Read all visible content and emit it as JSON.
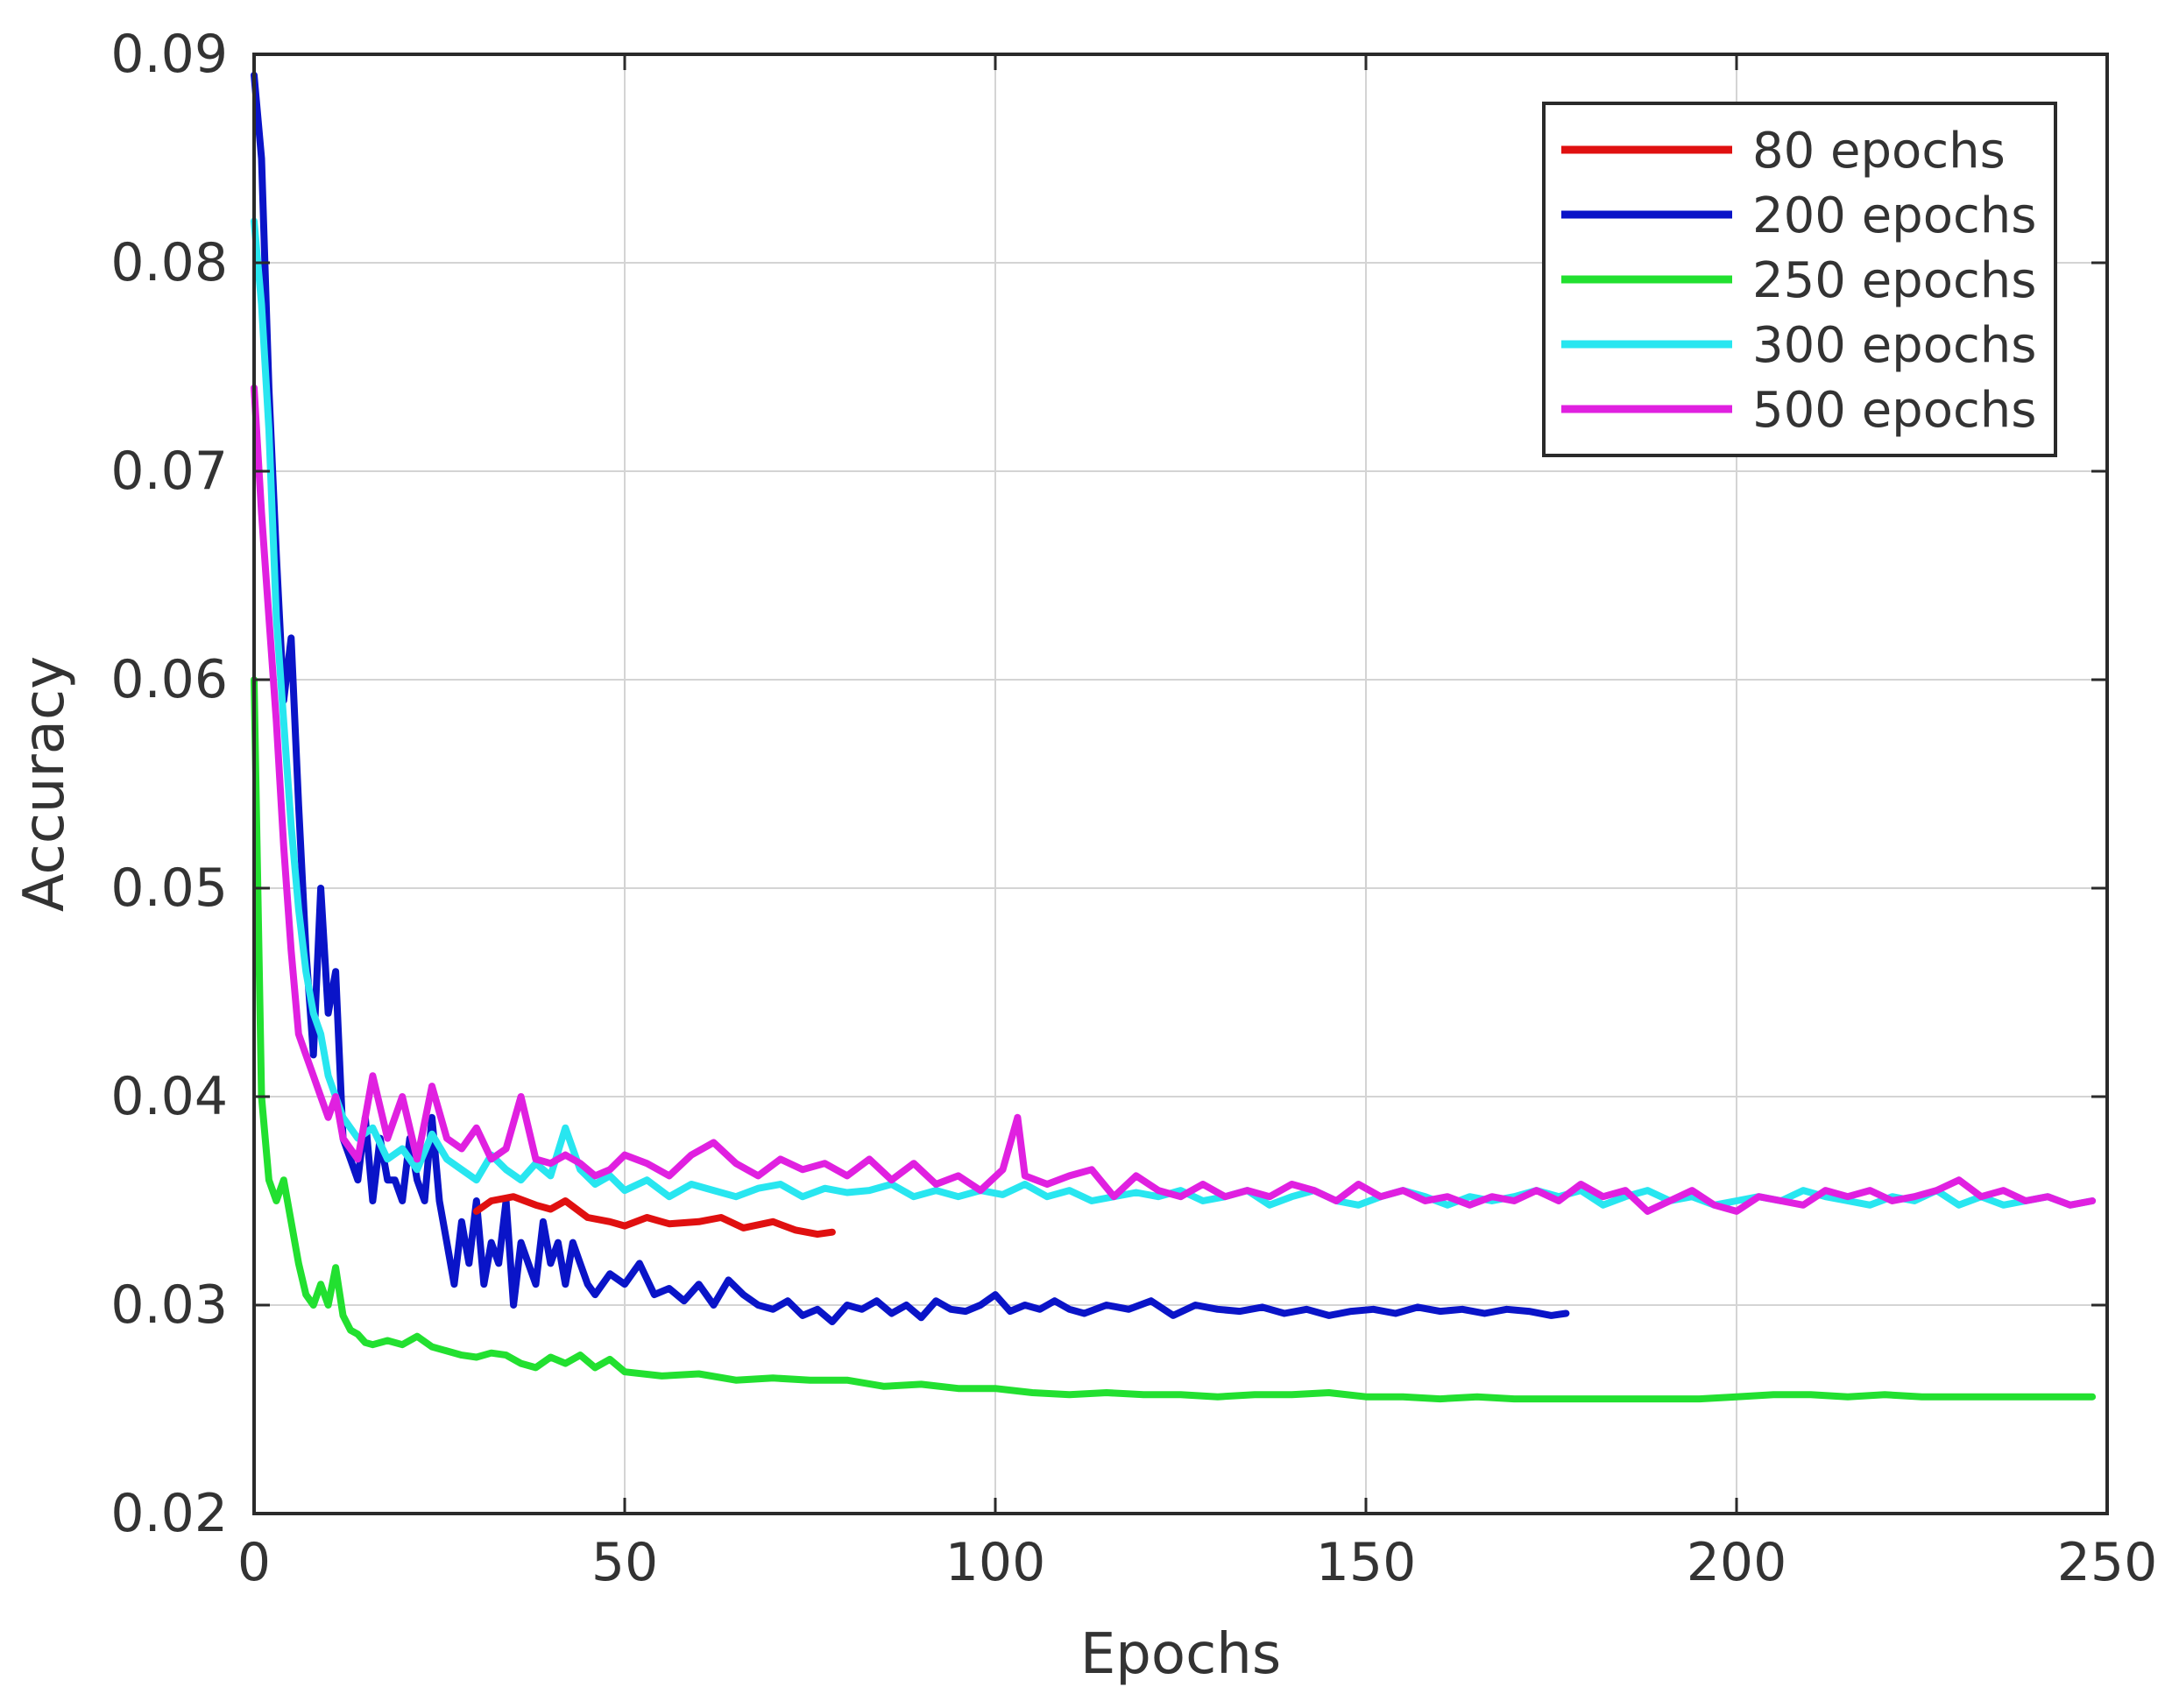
{
  "chart_data": {
    "type": "line",
    "title": "",
    "xlabel": "Epochs",
    "ylabel": "Accuracy",
    "xlim": [
      0,
      250
    ],
    "ylim": [
      0.02,
      0.09
    ],
    "xticks": [
      0,
      50,
      100,
      150,
      200,
      250
    ],
    "yticks": [
      0.02,
      0.03,
      0.04,
      0.05,
      0.06,
      0.07,
      0.08,
      0.09
    ],
    "xtick_labels": [
      "0",
      "50",
      "100",
      "150",
      "200",
      "250"
    ],
    "ytick_labels": [
      "0.02",
      "0.03",
      "0.04",
      "0.05",
      "0.06",
      "0.07",
      "0.08",
      "0.09"
    ],
    "grid": true,
    "legend_position": "top-right",
    "series": [
      {
        "name": "80 epochs",
        "color": "#e01010",
        "x": [
          30,
          32,
          35,
          38,
          40,
          42,
          45,
          48,
          50,
          53,
          56,
          60,
          63,
          66,
          70,
          73,
          76,
          78
        ],
        "y": [
          0.0345,
          0.035,
          0.0352,
          0.0348,
          0.0346,
          0.035,
          0.0342,
          0.034,
          0.0338,
          0.0342,
          0.0339,
          0.034,
          0.0342,
          0.0337,
          0.034,
          0.0336,
          0.0334,
          0.0335
        ]
      },
      {
        "name": "200 epochs",
        "color": "#0a14c8",
        "x": [
          0,
          1,
          2,
          3,
          4,
          5,
          6,
          7,
          8,
          9,
          10,
          11,
          12,
          13,
          14,
          15,
          16,
          17,
          18,
          19,
          20,
          21,
          22,
          23,
          24,
          25,
          26,
          27,
          28,
          29,
          30,
          31,
          32,
          33,
          34,
          35,
          36,
          37,
          38,
          39,
          40,
          41,
          42,
          43,
          44,
          45,
          46,
          48,
          50,
          52,
          54,
          56,
          58,
          60,
          62,
          64,
          66,
          68,
          70,
          72,
          74,
          76,
          78,
          80,
          82,
          84,
          86,
          88,
          90,
          92,
          94,
          96,
          98,
          100,
          102,
          104,
          106,
          108,
          110,
          112,
          115,
          118,
          121,
          124,
          127,
          130,
          133,
          136,
          139,
          142,
          145,
          148,
          151,
          154,
          157,
          160,
          163,
          166,
          169,
          172,
          175,
          177
        ],
        "y": [
          0.089,
          0.085,
          0.074,
          0.066,
          0.059,
          0.062,
          0.054,
          0.047,
          0.042,
          0.05,
          0.044,
          0.046,
          0.038,
          0.037,
          0.036,
          0.039,
          0.035,
          0.038,
          0.036,
          0.036,
          0.035,
          0.038,
          0.036,
          0.035,
          0.039,
          0.035,
          0.033,
          0.031,
          0.034,
          0.032,
          0.035,
          0.031,
          0.033,
          0.032,
          0.035,
          0.03,
          0.033,
          0.032,
          0.031,
          0.034,
          0.032,
          0.033,
          0.031,
          0.033,
          0.032,
          0.031,
          0.0305,
          0.0315,
          0.031,
          0.032,
          0.0305,
          0.0308,
          0.0302,
          0.031,
          0.03,
          0.0312,
          0.0305,
          0.03,
          0.0298,
          0.0302,
          0.0295,
          0.0298,
          0.0292,
          0.03,
          0.0298,
          0.0302,
          0.0296,
          0.03,
          0.0294,
          0.0302,
          0.0298,
          0.0297,
          0.03,
          0.0305,
          0.0297,
          0.03,
          0.0298,
          0.0302,
          0.0298,
          0.0296,
          0.03,
          0.0298,
          0.0302,
          0.0295,
          0.03,
          0.0298,
          0.0297,
          0.0299,
          0.0296,
          0.0298,
          0.0295,
          0.0297,
          0.0298,
          0.0296,
          0.0299,
          0.0297,
          0.0298,
          0.0296,
          0.0298,
          0.0297,
          0.0295,
          0.0296
        ]
      },
      {
        "name": "250 epochs",
        "color": "#22e030",
        "x": [
          0,
          1,
          2,
          3,
          4,
          5,
          6,
          7,
          8,
          9,
          10,
          11,
          12,
          13,
          14,
          15,
          16,
          18,
          20,
          22,
          24,
          26,
          28,
          30,
          32,
          34,
          36,
          38,
          40,
          42,
          44,
          46,
          48,
          50,
          55,
          60,
          65,
          70,
          75,
          80,
          85,
          90,
          95,
          100,
          105,
          110,
          115,
          120,
          125,
          130,
          135,
          140,
          145,
          150,
          155,
          160,
          165,
          170,
          175,
          180,
          185,
          190,
          195,
          200,
          205,
          210,
          215,
          220,
          225,
          230,
          235,
          240,
          245,
          248
        ],
        "y": [
          0.06,
          0.04,
          0.036,
          0.035,
          0.036,
          0.034,
          0.032,
          0.0305,
          0.03,
          0.031,
          0.03,
          0.0318,
          0.0295,
          0.0288,
          0.0286,
          0.0282,
          0.0281,
          0.0283,
          0.0281,
          0.0285,
          0.028,
          0.0278,
          0.0276,
          0.0275,
          0.0277,
          0.0276,
          0.0272,
          0.027,
          0.0275,
          0.0272,
          0.0276,
          0.027,
          0.0274,
          0.0268,
          0.0266,
          0.0267,
          0.0264,
          0.0265,
          0.0264,
          0.0264,
          0.0261,
          0.0262,
          0.026,
          0.026,
          0.0258,
          0.0257,
          0.0258,
          0.0257,
          0.0257,
          0.0256,
          0.0257,
          0.0257,
          0.0258,
          0.0256,
          0.0256,
          0.0255,
          0.0256,
          0.0255,
          0.0255,
          0.0255,
          0.0255,
          0.0255,
          0.0255,
          0.0256,
          0.0257,
          0.0257,
          0.0256,
          0.0257,
          0.0256,
          0.0256,
          0.0256,
          0.0256,
          0.0256,
          0.0256
        ]
      },
      {
        "name": "300 epochs",
        "color": "#28e6f0",
        "x": [
          0,
          1,
          2,
          3,
          4,
          5,
          6,
          7,
          8,
          9,
          10,
          11,
          12,
          14,
          16,
          18,
          20,
          22,
          24,
          26,
          28,
          30,
          32,
          34,
          36,
          38,
          40,
          42,
          44,
          46,
          48,
          50,
          53,
          56,
          59,
          62,
          65,
          68,
          71,
          74,
          77,
          80,
          83,
          86,
          89,
          92,
          95,
          98,
          101,
          104,
          107,
          110,
          113,
          116,
          119,
          122,
          125,
          128,
          131,
          134,
          137,
          140,
          143,
          146,
          149,
          152,
          155,
          158,
          161,
          164,
          167,
          170,
          173,
          176,
          179,
          182,
          185,
          188,
          191,
          194,
          197,
          200,
          203,
          206,
          209,
          212,
          215,
          218,
          221,
          224,
          227,
          230,
          233,
          236,
          239,
          242,
          245,
          248
        ],
        "y": [
          0.082,
          0.078,
          0.072,
          0.063,
          0.058,
          0.053,
          0.049,
          0.046,
          0.044,
          0.043,
          0.041,
          0.04,
          0.039,
          0.038,
          0.0385,
          0.037,
          0.0375,
          0.0365,
          0.0382,
          0.037,
          0.0365,
          0.036,
          0.0372,
          0.0365,
          0.036,
          0.0368,
          0.0362,
          0.0385,
          0.0365,
          0.0358,
          0.0362,
          0.0355,
          0.036,
          0.0352,
          0.0358,
          0.0355,
          0.0352,
          0.0356,
          0.0358,
          0.0352,
          0.0356,
          0.0354,
          0.0355,
          0.0358,
          0.0352,
          0.0355,
          0.0352,
          0.0355,
          0.0353,
          0.0358,
          0.0352,
          0.0355,
          0.035,
          0.0352,
          0.0354,
          0.0352,
          0.0355,
          0.035,
          0.0352,
          0.0355,
          0.0348,
          0.0352,
          0.0355,
          0.035,
          0.0348,
          0.0352,
          0.0355,
          0.0352,
          0.0348,
          0.0352,
          0.035,
          0.0352,
          0.0355,
          0.0352,
          0.0355,
          0.0348,
          0.0352,
          0.0355,
          0.035,
          0.0352,
          0.0348,
          0.035,
          0.0352,
          0.035,
          0.0355,
          0.0352,
          0.035,
          0.0348,
          0.0352,
          0.035,
          0.0355,
          0.0348,
          0.0352,
          0.0348,
          0.035,
          0.0352,
          0.0348,
          0.035
        ]
      },
      {
        "name": "500 epochs",
        "color": "#e020e0",
        "x": [
          0,
          1,
          2,
          3,
          4,
          5,
          6,
          7,
          8,
          9,
          10,
          11,
          12,
          14,
          16,
          18,
          20,
          22,
          24,
          26,
          28,
          30,
          32,
          34,
          36,
          38,
          40,
          42,
          44,
          46,
          48,
          50,
          53,
          56,
          59,
          62,
          65,
          68,
          71,
          74,
          77,
          80,
          83,
          86,
          89,
          92,
          95,
          98,
          101,
          103,
          104,
          107,
          110,
          113,
          116,
          119,
          122,
          125,
          128,
          131,
          134,
          137,
          140,
          143,
          146,
          149,
          152,
          155,
          158,
          161,
          164,
          167,
          170,
          173,
          176,
          179,
          182,
          185,
          188,
          191,
          194,
          197,
          200,
          203,
          206,
          209,
          212,
          215,
          218,
          221,
          224,
          227,
          230,
          233,
          236,
          239,
          242,
          245,
          248
        ],
        "y": [
          0.074,
          0.068,
          0.063,
          0.058,
          0.052,
          0.047,
          0.043,
          0.042,
          0.041,
          0.04,
          0.039,
          0.04,
          0.038,
          0.037,
          0.041,
          0.038,
          0.04,
          0.037,
          0.0405,
          0.038,
          0.0375,
          0.0385,
          0.037,
          0.0375,
          0.04,
          0.037,
          0.0368,
          0.0372,
          0.0368,
          0.0362,
          0.0365,
          0.0372,
          0.0368,
          0.0362,
          0.0372,
          0.0378,
          0.0368,
          0.0362,
          0.037,
          0.0365,
          0.0368,
          0.0362,
          0.037,
          0.036,
          0.0368,
          0.0358,
          0.0362,
          0.0355,
          0.0365,
          0.039,
          0.0362,
          0.0358,
          0.0362,
          0.0365,
          0.0352,
          0.0362,
          0.0355,
          0.0352,
          0.0358,
          0.0352,
          0.0355,
          0.0352,
          0.0358,
          0.0355,
          0.035,
          0.0358,
          0.0352,
          0.0355,
          0.035,
          0.0352,
          0.0348,
          0.0352,
          0.035,
          0.0355,
          0.035,
          0.0358,
          0.0352,
          0.0355,
          0.0345,
          0.035,
          0.0355,
          0.0348,
          0.0345,
          0.0352,
          0.035,
          0.0348,
          0.0355,
          0.0352,
          0.0355,
          0.035,
          0.0352,
          0.0355,
          0.036,
          0.0352,
          0.0355,
          0.035,
          0.0352,
          0.0348,
          0.035
        ]
      }
    ]
  }
}
